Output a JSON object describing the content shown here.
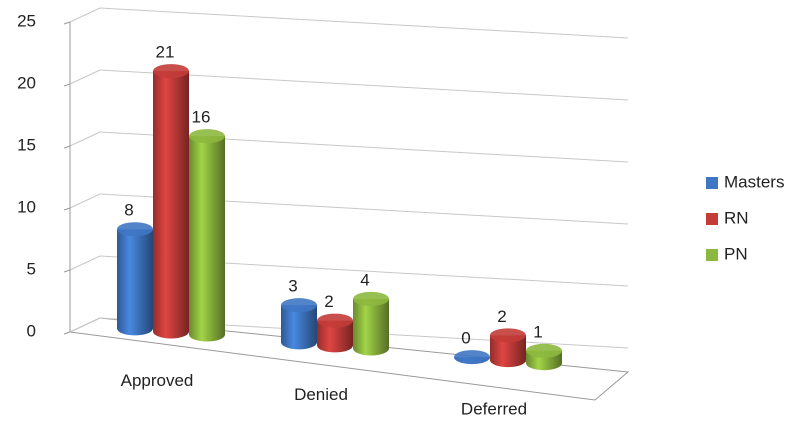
{
  "chart_data": {
    "type": "bar3d",
    "categories": [
      "Approved",
      "Denied",
      "Deferred"
    ],
    "series": [
      {
        "name": "Masters",
        "color": "#3f77c4",
        "values": [
          8,
          3,
          0
        ]
      },
      {
        "name": "RN",
        "color": "#c33c39",
        "values": [
          21,
          2,
          2
        ]
      },
      {
        "name": "PN",
        "color": "#8db83f",
        "values": [
          16,
          4,
          1
        ]
      }
    ],
    "ylim": [
      0,
      25
    ],
    "yticks": [
      0,
      5,
      10,
      15,
      20,
      25
    ],
    "grid": true,
    "legend": "right"
  }
}
